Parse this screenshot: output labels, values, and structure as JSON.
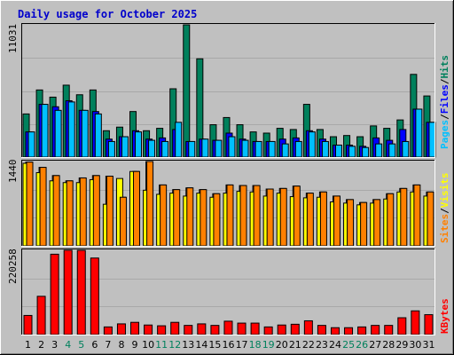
{
  "title": "Daily usage for October 2025",
  "colors": {
    "background": "#c0c0c0",
    "plot_background": "#c0c0c0",
    "grid": "#a8a8a8",
    "title_text": "#0000cc",
    "hits": "#00805c",
    "files": "#0000ff",
    "pages": "#00c0ff",
    "visits": "#ff8000",
    "sites": "#ffff00",
    "kbytes": "#ff0000",
    "weekend_day_label": "#00805c",
    "weekday_label": "#000000"
  },
  "right_labels": {
    "top": {
      "hits": "Hits",
      "files": "Files",
      "pages": "Pages",
      "separator": "/"
    },
    "middle": {
      "visits": "Visits",
      "sites": "Sites",
      "separator": "/"
    },
    "bottom": {
      "kbytes": "KBytes"
    }
  },
  "chart_data": [
    {
      "type": "bar",
      "panel": "hits-files-pages",
      "max_label": "11031",
      "ylim": [
        0,
        11031
      ],
      "grid": true,
      "categories": [
        "1",
        "2",
        "3",
        "4",
        "5",
        "6",
        "7",
        "8",
        "9",
        "10",
        "11",
        "12",
        "13",
        "14",
        "15",
        "16",
        "17",
        "18",
        "19",
        "20",
        "21",
        "22",
        "23",
        "24",
        "25",
        "26",
        "27",
        "28",
        "29",
        "30",
        "31"
      ],
      "series": [
        {
          "name": "Hits",
          "values": [
            3600,
            5600,
            5000,
            6000,
            5200,
            5600,
            2200,
            2500,
            3800,
            2200,
            2400,
            5700,
            11031,
            8200,
            2700,
            3300,
            2700,
            2100,
            2000,
            2400,
            2300,
            4400,
            2300,
            1700,
            1800,
            1700,
            2600,
            2400,
            3100,
            6900,
            5100
          ]
        },
        {
          "name": "Files",
          "values": [
            2100,
            4400,
            4200,
            4700,
            3900,
            3800,
            1500,
            1700,
            2200,
            1500,
            1600,
            2300,
            1300,
            1500,
            1400,
            2000,
            1500,
            1300,
            1300,
            1500,
            1600,
            2200,
            1500,
            1000,
            1000,
            900,
            1600,
            1400,
            2300,
            4000,
            2900
          ]
        },
        {
          "name": "Pages",
          "values": [
            2100,
            4400,
            3900,
            4600,
            3900,
            3600,
            1300,
            1700,
            2100,
            1400,
            1300,
            2900,
            1300,
            1500,
            1400,
            1700,
            1400,
            1300,
            1300,
            1100,
            1300,
            2100,
            1300,
            1000,
            900,
            800,
            1100,
            1100,
            1300,
            4000,
            2900
          ]
        }
      ]
    },
    {
      "type": "bar",
      "panel": "visits-sites",
      "max_label": "1440",
      "ylim": [
        0,
        1440
      ],
      "grid": true,
      "categories": [
        "1",
        "2",
        "3",
        "4",
        "5",
        "6",
        "7",
        "8",
        "9",
        "10",
        "11",
        "12",
        "13",
        "14",
        "15",
        "16",
        "17",
        "18",
        "19",
        "20",
        "21",
        "22",
        "23",
        "24",
        "25",
        "26",
        "27",
        "28",
        "29",
        "30",
        "31"
      ],
      "series": [
        {
          "name": "Visits",
          "values": [
            1430,
            1340,
            1200,
            1110,
            1160,
            1200,
            1190,
            830,
            1270,
            1440,
            1040,
            960,
            990,
            960,
            890,
            1040,
            1030,
            1030,
            970,
            980,
            1020,
            900,
            920,
            850,
            790,
            740,
            790,
            890,
            980,
            1040,
            920
          ]
        },
        {
          "name": "Sites",
          "values": [
            1410,
            1250,
            1110,
            1080,
            1080,
            1130,
            710,
            1150,
            1270,
            950,
            880,
            900,
            850,
            900,
            830,
            900,
            930,
            920,
            850,
            900,
            840,
            820,
            830,
            750,
            730,
            700,
            730,
            800,
            920,
            920,
            850
          ]
        }
      ]
    },
    {
      "type": "bar",
      "panel": "kbytes",
      "max_label": "220258",
      "ylim": [
        0,
        220258
      ],
      "grid": true,
      "categories": [
        "1",
        "2",
        "3",
        "4",
        "5",
        "6",
        "7",
        "8",
        "9",
        "10",
        "11",
        "12",
        "13",
        "14",
        "15",
        "16",
        "17",
        "18",
        "19",
        "20",
        "21",
        "22",
        "23",
        "24",
        "25",
        "26",
        "27",
        "28",
        "29",
        "30",
        "31"
      ],
      "series": [
        {
          "name": "KBytes",
          "values": [
            50000,
            100000,
            210000,
            220258,
            220000,
            200000,
            20000,
            28000,
            32000,
            25000,
            23000,
            32000,
            24000,
            28000,
            24000,
            35000,
            30000,
            30000,
            20000,
            25000,
            27000,
            36000,
            24000,
            18000,
            18000,
            20000,
            24000,
            24000,
            44000,
            62000,
            52000
          ]
        }
      ]
    }
  ],
  "day_labels": [
    "1",
    "2",
    "3",
    "4",
    "5",
    "6",
    "7",
    "8",
    "9",
    "10",
    "11",
    "12",
    "13",
    "14",
    "15",
    "16",
    "17",
    "18",
    "19",
    "20",
    "21",
    "22",
    "23",
    "24",
    "25",
    "26",
    "27",
    "28",
    "29",
    "30",
    "31"
  ],
  "weekend_days": [
    "4",
    "5",
    "11",
    "12",
    "18",
    "19",
    "25",
    "26"
  ]
}
